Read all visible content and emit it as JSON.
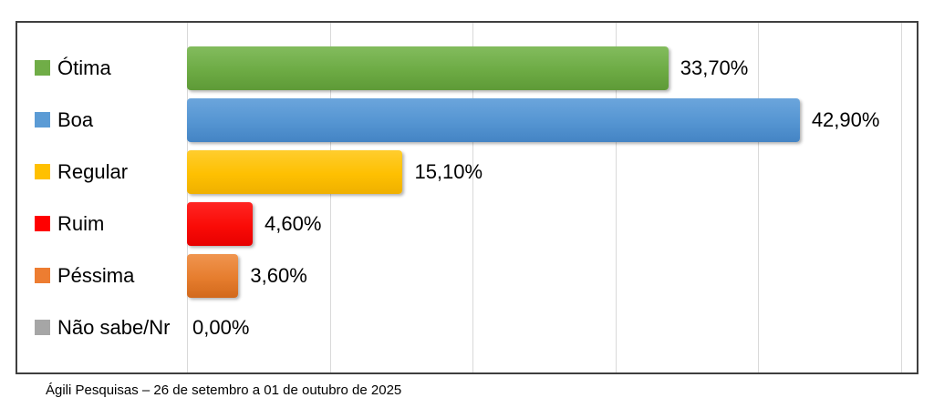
{
  "chart_data": {
    "type": "bar",
    "orientation": "horizontal",
    "title": "",
    "categories": [
      "Ótima",
      "Boa",
      "Regular",
      "Ruim",
      "Péssima",
      "Não sabe/Nr"
    ],
    "values": [
      33.7,
      42.9,
      15.1,
      4.6,
      3.6,
      0.0
    ],
    "value_labels": [
      "33,70%",
      "42,90%",
      "15,10%",
      "4,60%",
      "3,60%",
      "0,00%"
    ],
    "colors": [
      "#70AD47",
      "#5B9BD5",
      "#FFC000",
      "#FF0000",
      "#ED7D31",
      "#A6A6A6"
    ],
    "gradients": [
      {
        "top": "#83BC5E",
        "mid": "#6DAB44",
        "bottom": "#5E9A37"
      },
      {
        "top": "#6BA5DC",
        "mid": "#5595D2",
        "bottom": "#4484C4"
      },
      {
        "top": "#FFCD2E",
        "mid": "#FEC001",
        "bottom": "#EFB000"
      },
      {
        "top": "#FF2623",
        "mid": "#FA0B07",
        "bottom": "#E60000"
      },
      {
        "top": "#F0954F",
        "mid": "#E67D2E",
        "bottom": "#D2691C"
      },
      {
        "top": "#BFBFBF",
        "mid": "#A6A6A6",
        "bottom": "#969696"
      }
    ],
    "xlim": [
      0,
      50
    ],
    "gridline_step": 10,
    "grid": "vertical",
    "legend_position": "swatches-beside-category-labels",
    "frame_border_color": "#3F3F3F",
    "gridline_color": "#D9D9D9",
    "text_color": "#000000",
    "footer": "Ágili Pesquisas – 26 de setembro a 01 de outubro de 2025"
  }
}
